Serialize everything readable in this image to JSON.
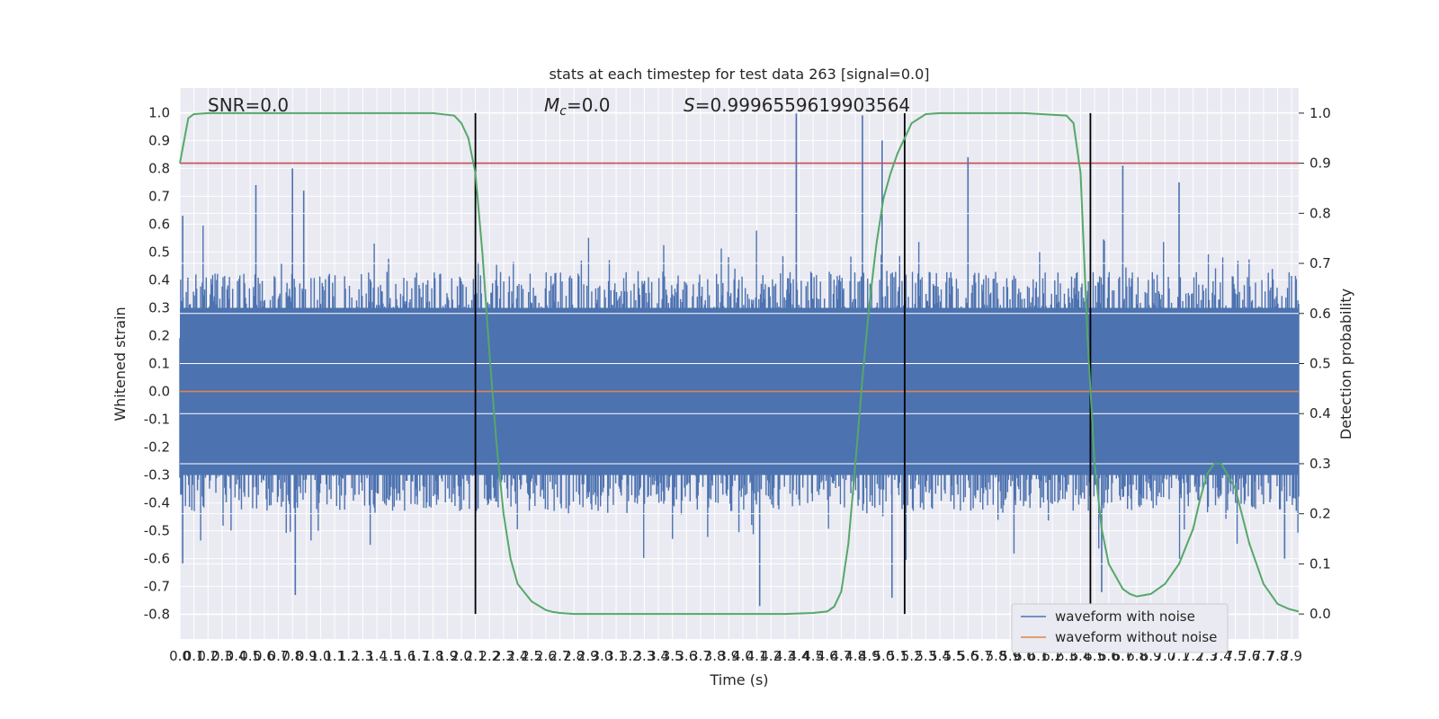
{
  "chart_data": {
    "type": "line",
    "title": "stats at each timestep for test data 263 [signal=0.0]",
    "xlabel": "Time (s)",
    "ylabel": "Whitened strain",
    "y2label": "Detection probability",
    "xlim": [
      0.0,
      7.95
    ],
    "ylim": [
      -0.888,
      1.088
    ],
    "y2lim": [
      -0.05,
      1.05
    ],
    "x_ticks": [
      "0.0",
      "0.1",
      "0.2",
      "0.3",
      "0.4",
      "0.5",
      "0.6",
      "0.7",
      "0.8",
      "0.9",
      "1.0",
      "1.1",
      "1.2",
      "1.3",
      "1.4",
      "1.5",
      "1.6",
      "1.7",
      "1.8",
      "1.9",
      "2.0",
      "2.1",
      "2.2",
      "2.3",
      "2.4",
      "2.5",
      "2.6",
      "2.7",
      "2.8",
      "2.9",
      "3.0",
      "3.1",
      "3.2",
      "3.3",
      "3.4",
      "3.5",
      "3.6",
      "3.7",
      "3.8",
      "3.9",
      "4.0",
      "4.1",
      "4.2",
      "4.3",
      "4.4",
      "4.5",
      "4.6",
      "4.7",
      "4.8",
      "4.9",
      "5.0",
      "5.1",
      "5.2",
      "5.3",
      "5.4",
      "5.5",
      "5.6",
      "5.7",
      "5.8",
      "5.9",
      "6.0",
      "6.1",
      "6.2",
      "6.3",
      "6.4",
      "6.5",
      "6.6",
      "6.7",
      "6.8",
      "6.9",
      "7.0",
      "7.1",
      "7.2",
      "7.3",
      "7.4",
      "7.5",
      "7.6",
      "7.7",
      "7.8",
      "7.9"
    ],
    "y_ticks": [
      "-0.8",
      "-0.7",
      "-0.6",
      "-0.5",
      "-0.4",
      "-0.3",
      "-0.2",
      "-0.1",
      "0.0",
      "0.1",
      "0.2",
      "0.3",
      "0.4",
      "0.5",
      "0.6",
      "0.7",
      "0.8",
      "0.9",
      "1.0"
    ],
    "y2_ticks": [
      "0.0",
      "0.1",
      "0.2",
      "0.3",
      "0.4",
      "0.5",
      "0.6",
      "0.7",
      "0.8",
      "0.9",
      "1.0"
    ],
    "grid": true,
    "legend_position": "lower-right",
    "annotations": {
      "snr": "SNR=0.0",
      "mc_symbol": "M",
      "mc_sub": "c",
      "mc_value": "=0.0",
      "s_symbol": "S",
      "s_value": "=0.9996559619903564"
    },
    "series": [
      {
        "name": "waveform with noise",
        "color": "#4c72b0",
        "kind": "noise",
        "x_range": [
          0.0,
          7.95
        ],
        "core_amplitude": 0.43,
        "peaks": [
          {
            "x": 0.02,
            "y": 0.63
          },
          {
            "x": 0.02,
            "y": -0.62
          },
          {
            "x": 0.54,
            "y": 0.74
          },
          {
            "x": 0.8,
            "y": 0.8
          },
          {
            "x": 0.88,
            "y": 0.72
          },
          {
            "x": 0.82,
            "y": -0.73
          },
          {
            "x": 4.38,
            "y": 1.0
          },
          {
            "x": 4.85,
            "y": 0.99
          },
          {
            "x": 4.99,
            "y": 0.9
          },
          {
            "x": 5.06,
            "y": -0.74
          },
          {
            "x": 5.6,
            "y": 0.84
          },
          {
            "x": 6.7,
            "y": 0.81
          },
          {
            "x": 7.1,
            "y": 0.75
          },
          {
            "x": 4.12,
            "y": -0.77
          },
          {
            "x": 6.55,
            "y": -0.72
          },
          {
            "x": 7.85,
            "y": -0.6
          }
        ]
      },
      {
        "name": "waveform without noise",
        "color": "#dd8452",
        "x": [
          0.0,
          7.95
        ],
        "y": [
          0.0,
          0.0
        ]
      },
      {
        "name": "detection probability",
        "color": "#55a868",
        "axis": "right",
        "x": [
          0.0,
          0.06,
          0.1,
          0.2,
          0.5,
          1.0,
          1.5,
          1.8,
          1.95,
          2.0,
          2.05,
          2.1,
          2.15,
          2.2,
          2.25,
          2.3,
          2.35,
          2.4,
          2.5,
          2.6,
          2.65,
          2.7,
          2.8,
          3.0,
          3.5,
          4.0,
          4.3,
          4.5,
          4.6,
          4.65,
          4.7,
          4.75,
          4.8,
          4.85,
          4.9,
          4.95,
          5.0,
          5.05,
          5.1,
          5.15,
          5.2,
          5.3,
          5.4,
          5.5,
          5.6,
          6.0,
          6.3,
          6.35,
          6.4,
          6.45,
          6.5,
          6.55,
          6.6,
          6.7,
          6.75,
          6.8,
          6.9,
          7.0,
          7.1,
          7.2,
          7.25,
          7.3,
          7.35,
          7.4,
          7.5,
          7.6,
          7.7,
          7.8,
          7.88,
          7.95
        ],
        "y": [
          0.9,
          0.99,
          0.998,
          1.0,
          1.0,
          1.0,
          1.0,
          1.0,
          0.995,
          0.98,
          0.95,
          0.88,
          0.72,
          0.52,
          0.34,
          0.2,
          0.11,
          0.06,
          0.025,
          0.008,
          0.004,
          0.002,
          0.0,
          0.0,
          0.0,
          0.0,
          0.0,
          0.002,
          0.005,
          0.015,
          0.045,
          0.14,
          0.3,
          0.47,
          0.62,
          0.74,
          0.83,
          0.88,
          0.92,
          0.95,
          0.98,
          0.998,
          1.0,
          1.0,
          1.0,
          1.0,
          0.995,
          0.98,
          0.88,
          0.55,
          0.3,
          0.17,
          0.1,
          0.05,
          0.04,
          0.035,
          0.04,
          0.06,
          0.1,
          0.17,
          0.23,
          0.28,
          0.3,
          0.3,
          0.25,
          0.14,
          0.06,
          0.02,
          0.01,
          0.005
        ]
      }
    ],
    "threshold": {
      "color": "#c44e52",
      "y2": 0.9
    },
    "vlines": [
      2.1,
      5.15,
      6.47
    ]
  }
}
